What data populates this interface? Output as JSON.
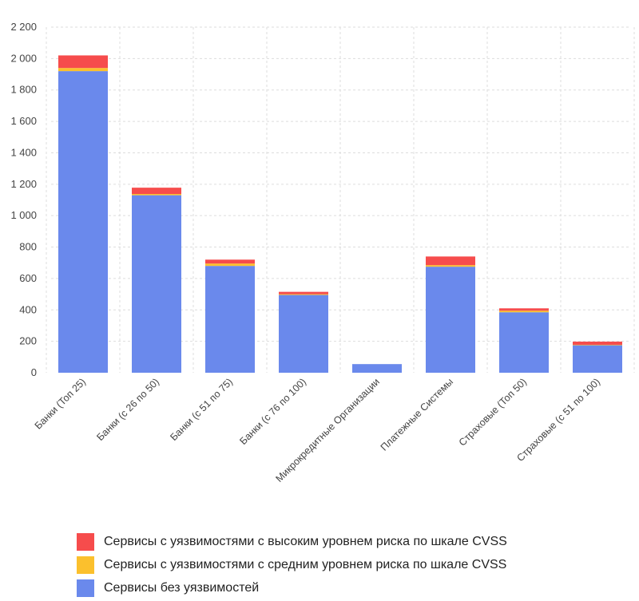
{
  "chart_data": {
    "type": "bar",
    "stacked": true,
    "categories": [
      "Банки (Топ 25)",
      "Банки (с 26 по 50)",
      "Банки (с 51 по 75)",
      "Банки (с 76 по 100)",
      "Микрокредитные Организации",
      "Платежные Системы",
      "Страховые (Топ 50)",
      "Страховые (с 51 по 100)"
    ],
    "series": [
      {
        "name": "Сервисы без уязвимостей",
        "color": "#6a89ec",
        "values": [
          1920,
          1130,
          680,
          495,
          55,
          675,
          385,
          175
        ]
      },
      {
        "name": "Сервисы с уязвимостями с средним уровнем риска по шкале CVSS",
        "color": "#fbc02d",
        "values": [
          20,
          8,
          15,
          5,
          0,
          10,
          10,
          3
        ]
      },
      {
        "name": "Сервисы с уязвимостями с высоким уровнем риска по шкале CVSS",
        "color": "#f64c4c",
        "values": [
          80,
          40,
          25,
          15,
          0,
          55,
          15,
          20
        ]
      }
    ],
    "yticks": [
      "0",
      "200",
      "400",
      "600",
      "800",
      "1 000",
      "1 200",
      "1 400",
      "1 600",
      "1 800",
      "2 000",
      "2 200"
    ],
    "ylim": [
      0,
      2200
    ],
    "xlabel": "",
    "ylabel": "",
    "legend": {
      "position": "bottom",
      "order": [
        2,
        1,
        0
      ]
    }
  }
}
